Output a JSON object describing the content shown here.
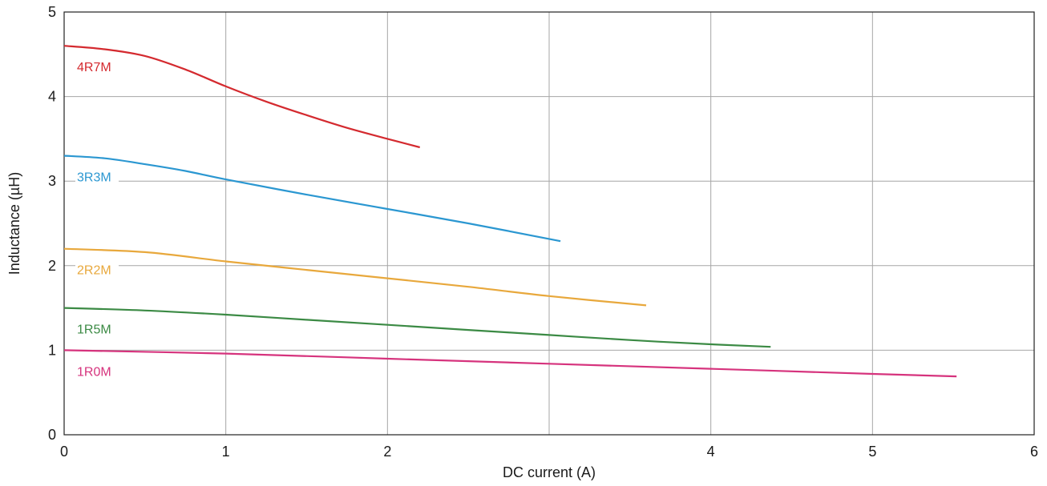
{
  "chart_data": {
    "type": "line",
    "title": "",
    "xlabel": "DC current (A)",
    "ylabel": "Inductance (µH)",
    "xlim": [
      0,
      6
    ],
    "ylim": [
      0,
      5
    ],
    "x_ticks": [
      0,
      1,
      2,
      4,
      5,
      6
    ],
    "x_gridlines": [
      0,
      1,
      2,
      3,
      4,
      5,
      6
    ],
    "y_ticks": [
      0,
      1,
      2,
      3,
      4,
      5
    ],
    "grid": true,
    "legend": "inline labels near left of each curve",
    "series": [
      {
        "name": "4R7M",
        "color": "#d42a2f",
        "x": [
          0,
          0.25,
          0.5,
          0.75,
          1.0,
          1.25,
          1.5,
          1.75,
          2.0,
          2.2
        ],
        "y": [
          4.6,
          4.56,
          4.48,
          4.32,
          4.12,
          3.94,
          3.78,
          3.63,
          3.5,
          3.4
        ]
      },
      {
        "name": "3R3M",
        "color": "#2b97d1",
        "x": [
          0,
          0.25,
          0.5,
          0.75,
          1.0,
          1.5,
          2.0,
          2.5,
          3.07
        ],
        "y": [
          3.3,
          3.27,
          3.2,
          3.12,
          3.02,
          2.84,
          2.67,
          2.5,
          2.29
        ]
      },
      {
        "name": "2R2M",
        "color": "#e8a83c",
        "x": [
          0,
          0.5,
          1.0,
          1.5,
          2.0,
          2.5,
          3.0,
          3.6
        ],
        "y": [
          2.2,
          2.16,
          2.05,
          1.95,
          1.85,
          1.75,
          1.64,
          1.53
        ]
      },
      {
        "name": "1R5M",
        "color": "#3b8a44",
        "x": [
          0,
          0.5,
          1.0,
          1.5,
          2.0,
          2.5,
          3.0,
          3.5,
          4.0,
          4.37
        ],
        "y": [
          1.5,
          1.47,
          1.42,
          1.36,
          1.3,
          1.24,
          1.18,
          1.12,
          1.07,
          1.04
        ]
      },
      {
        "name": "1R0M",
        "color": "#d6337d",
        "x": [
          0,
          1.0,
          2.0,
          3.0,
          4.0,
          5.0,
          5.52
        ],
        "y": [
          1.0,
          0.96,
          0.9,
          0.84,
          0.78,
          0.72,
          0.69
        ]
      }
    ]
  }
}
